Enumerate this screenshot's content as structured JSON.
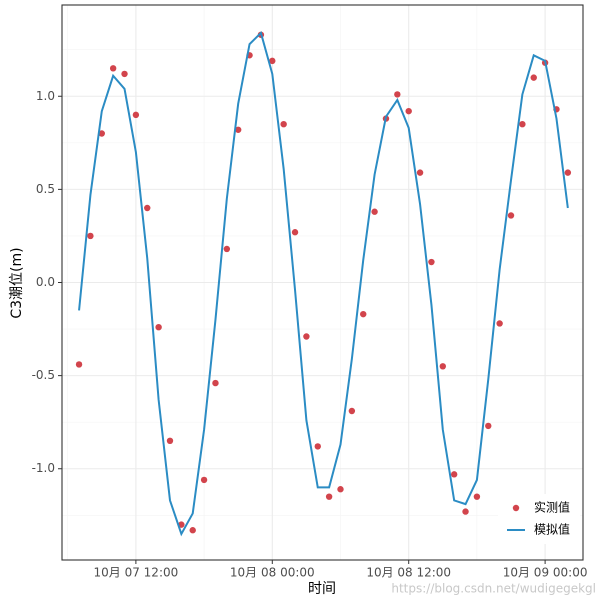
{
  "chart_data": {
    "type": "line",
    "x_label": "时间",
    "y_label": "C3潮位(m)",
    "watermark": "https://blog.csdn.net/wudigegekgl",
    "x": [
      "10月 07 07:00",
      "10月 07 08:00",
      "10月 07 09:00",
      "10月 07 10:00",
      "10月 07 11:00",
      "10月 07 12:00",
      "10月 07 13:00",
      "10月 07 14:00",
      "10月 07 15:00",
      "10月 07 16:00",
      "10月 07 17:00",
      "10月 07 18:00",
      "10月 07 19:00",
      "10月 07 20:00",
      "10月 07 21:00",
      "10月 07 22:00",
      "10月 07 23:00",
      "10月 08 00:00",
      "10月 08 01:00",
      "10月 08 02:00",
      "10月 08 03:00",
      "10月 08 04:00",
      "10月 08 05:00",
      "10月 08 06:00",
      "10月 08 07:00",
      "10月 08 08:00",
      "10月 08 09:00",
      "10月 08 10:00",
      "10月 08 11:00",
      "10月 08 12:00",
      "10月 08 13:00",
      "10月 08 14:00",
      "10月 08 15:00",
      "10月 08 16:00",
      "10月 08 17:00",
      "10月 08 18:00",
      "10月 08 19:00",
      "10月 08 20:00",
      "10月 08 21:00",
      "10月 08 22:00",
      "10月 08 23:00",
      "10月 09 00:00",
      "10月 09 01:00",
      "10月 09 02:00"
    ],
    "series": [
      {
        "name": "实测值",
        "color": "#d2444c",
        "mode": "points",
        "values": [
          -0.44,
          0.25,
          0.8,
          1.15,
          1.12,
          0.9,
          0.4,
          -0.24,
          -0.85,
          -1.3,
          -1.33,
          -1.06,
          -0.54,
          0.18,
          0.82,
          1.22,
          1.33,
          1.19,
          0.85,
          0.27,
          -0.29,
          -0.88,
          -1.15,
          -1.11,
          -0.69,
          -0.17,
          0.38,
          0.88,
          1.01,
          0.92,
          0.59,
          0.11,
          -0.45,
          -1.03,
          -1.23,
          -1.15,
          -0.77,
          -0.22,
          0.36,
          0.85,
          1.1,
          1.18,
          0.93,
          0.59
        ]
      },
      {
        "name": "模拟值",
        "color": "#2b8cc4",
        "mode": "line",
        "values": [
          -0.15,
          0.47,
          0.92,
          1.11,
          1.04,
          0.7,
          0.13,
          -0.63,
          -1.17,
          -1.35,
          -1.24,
          -0.79,
          -0.2,
          0.45,
          0.96,
          1.28,
          1.34,
          1.12,
          0.61,
          -0.04,
          -0.74,
          -1.1,
          -1.1,
          -0.87,
          -0.41,
          0.12,
          0.58,
          0.89,
          0.98,
          0.83,
          0.42,
          -0.12,
          -0.79,
          -1.17,
          -1.19,
          -1.06,
          -0.52,
          0.07,
          0.55,
          1.01,
          1.22,
          1.19,
          0.88,
          0.4
        ]
      }
    ],
    "xlim": [
      "10月 07 05:30",
      "10月 09 03:20"
    ],
    "xticks": [
      "10月 07 12:00",
      "10月 08 00:00",
      "10月 08 12:00",
      "10月 09 00:00"
    ],
    "ylim": [
      -1.49,
      1.49
    ],
    "yticks": [
      {
        "value": -1,
        "label": "-1.0"
      },
      {
        "value": -0.5,
        "label": "-0.5"
      },
      {
        "value": 0,
        "label": "0.0"
      },
      {
        "value": 0.5,
        "label": "0.5"
      },
      {
        "value": 1,
        "label": "1.0"
      }
    ],
    "grid": true,
    "legend": "bottom-right"
  }
}
